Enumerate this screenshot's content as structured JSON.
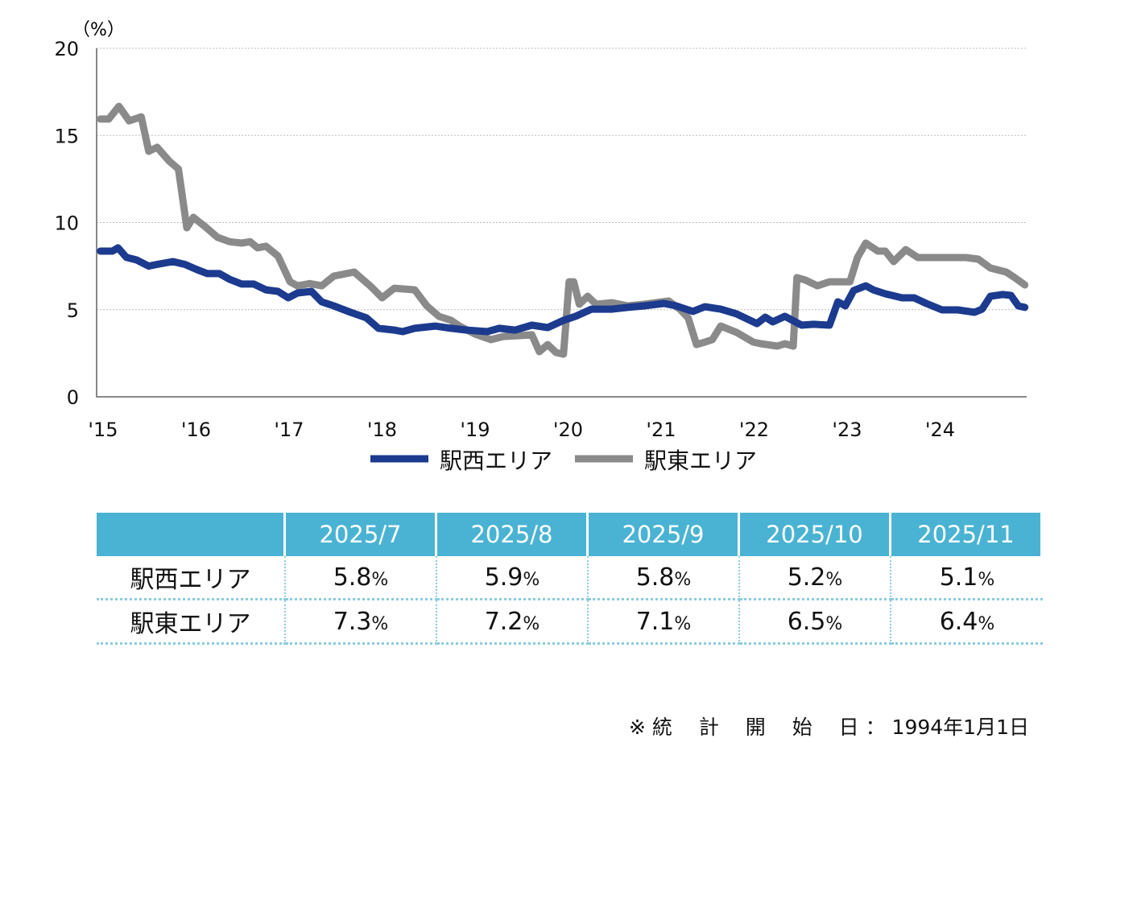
{
  "chart_data": {
    "type": "line",
    "ylabel": "（%）",
    "ylim": [
      0,
      20
    ],
    "yticks": [
      0,
      5,
      10,
      15,
      20
    ],
    "xlim": [
      2015,
      2025
    ],
    "xtick_labels": [
      "'15",
      "'16",
      "'17",
      "'18",
      "'19",
      "'20",
      "'21",
      "'22",
      "'23",
      "'24"
    ],
    "grid": true,
    "legend_position": "bottom",
    "series": [
      {
        "name": "駅西エリア",
        "color": "#1c3a8e",
        "x": [
          2015.04,
          2015.17,
          2015.23,
          2015.32,
          2015.43,
          2015.56,
          2015.65,
          2015.82,
          2015.95,
          2016.08,
          2016.19,
          2016.32,
          2016.43,
          2016.56,
          2016.69,
          2016.82,
          2016.95,
          2017.06,
          2017.16,
          2017.31,
          2017.42,
          2017.55,
          2017.73,
          2017.9,
          2018.03,
          2018.2,
          2018.29,
          2018.42,
          2018.64,
          2018.81,
          2018.98,
          2019.2,
          2019.33,
          2019.5,
          2019.68,
          2019.85,
          2020.02,
          2020.15,
          2020.32,
          2020.54,
          2020.71,
          2020.89,
          2021.1,
          2021.23,
          2021.41,
          2021.54,
          2021.71,
          2021.88,
          2022.1,
          2022.19,
          2022.27,
          2022.4,
          2022.58,
          2022.71,
          2022.88,
          2022.97,
          2023.05,
          2023.14,
          2023.27,
          2023.35,
          2023.48,
          2023.66,
          2023.79,
          2023.92,
          2024.09,
          2024.26,
          2024.44,
          2024.52,
          2024.61,
          2024.74,
          2024.83,
          2024.91,
          2024.98
        ],
        "y": [
          8.36,
          8.36,
          8.55,
          8.0,
          7.85,
          7.5,
          7.6,
          7.76,
          7.6,
          7.3,
          7.07,
          7.07,
          6.74,
          6.47,
          6.47,
          6.14,
          6.05,
          5.68,
          5.96,
          6.05,
          5.45,
          5.22,
          4.85,
          4.53,
          3.93,
          3.83,
          3.74,
          3.93,
          4.06,
          3.93,
          3.83,
          3.74,
          3.93,
          3.83,
          4.11,
          3.97,
          4.39,
          4.62,
          5.03,
          5.03,
          5.13,
          5.22,
          5.36,
          5.22,
          4.9,
          5.17,
          5.03,
          4.76,
          4.2,
          4.57,
          4.3,
          4.62,
          4.11,
          4.16,
          4.11,
          5.45,
          5.22,
          6.1,
          6.37,
          6.14,
          5.91,
          5.68,
          5.68,
          5.36,
          4.99,
          4.99,
          4.85,
          5.03,
          5.77,
          5.87,
          5.82,
          5.22,
          5.13
        ]
      },
      {
        "name": "駅東エリア",
        "color": "#8a8a8a",
        "x": [
          2015.04,
          2015.13,
          2015.24,
          2015.35,
          2015.48,
          2015.56,
          2015.65,
          2015.78,
          2015.88,
          2015.97,
          2016.04,
          2016.17,
          2016.3,
          2016.43,
          2016.56,
          2016.65,
          2016.73,
          2016.82,
          2016.95,
          2017.08,
          2017.16,
          2017.29,
          2017.42,
          2017.55,
          2017.77,
          2017.94,
          2018.07,
          2018.2,
          2018.42,
          2018.55,
          2018.68,
          2018.81,
          2018.9,
          2019.07,
          2019.24,
          2019.37,
          2019.55,
          2019.68,
          2019.76,
          2019.85,
          2019.94,
          2020.02,
          2020.08,
          2020.13,
          2020.19,
          2020.28,
          2020.37,
          2020.54,
          2020.71,
          2020.89,
          2021.15,
          2021.28,
          2021.36,
          2021.45,
          2021.54,
          2021.62,
          2021.71,
          2021.88,
          2022.06,
          2022.14,
          2022.32,
          2022.4,
          2022.49,
          2022.53,
          2022.62,
          2022.75,
          2022.88,
          2023.1,
          2023.18,
          2023.27,
          2023.4,
          2023.48,
          2023.57,
          2023.7,
          2023.83,
          2024.09,
          2024.35,
          2024.48,
          2024.61,
          2024.78,
          2024.87,
          2024.98
        ],
        "y": [
          15.94,
          15.94,
          16.67,
          15.84,
          16.07,
          14.09,
          14.32,
          13.53,
          13.07,
          9.7,
          10.3,
          9.75,
          9.15,
          8.9,
          8.82,
          8.9,
          8.55,
          8.64,
          8.08,
          6.6,
          6.37,
          6.5,
          6.37,
          6.93,
          7.16,
          6.37,
          5.68,
          6.23,
          6.14,
          5.22,
          4.62,
          4.39,
          4.06,
          3.6,
          3.28,
          3.46,
          3.51,
          3.56,
          2.59,
          3.0,
          2.54,
          2.45,
          6.6,
          6.6,
          5.31,
          5.77,
          5.31,
          5.4,
          5.22,
          5.31,
          5.5,
          4.99,
          4.53,
          3.0,
          3.14,
          3.28,
          4.06,
          3.7,
          3.14,
          3.05,
          2.91,
          3.05,
          2.91,
          6.84,
          6.7,
          6.37,
          6.6,
          6.6,
          7.99,
          8.82,
          8.36,
          8.36,
          7.76,
          8.45,
          7.99,
          7.99,
          7.99,
          7.9,
          7.39,
          7.16,
          6.84,
          6.42
        ]
      }
    ]
  },
  "table": {
    "headers": [
      "",
      "2025/7",
      "2025/8",
      "2025/9",
      "2025/10",
      "2025/11"
    ],
    "unit": "%",
    "rows": [
      {
        "label": "駅西エリア",
        "values": [
          "5.8",
          "5.9",
          "5.8",
          "5.2",
          "5.1"
        ]
      },
      {
        "label": "駅東エリア",
        "values": [
          "7.3",
          "7.2",
          "7.1",
          "6.5",
          "6.4"
        ]
      }
    ]
  },
  "footnote": "※ 統　 計　 開　 始　 日 ： 1994年1月1日"
}
